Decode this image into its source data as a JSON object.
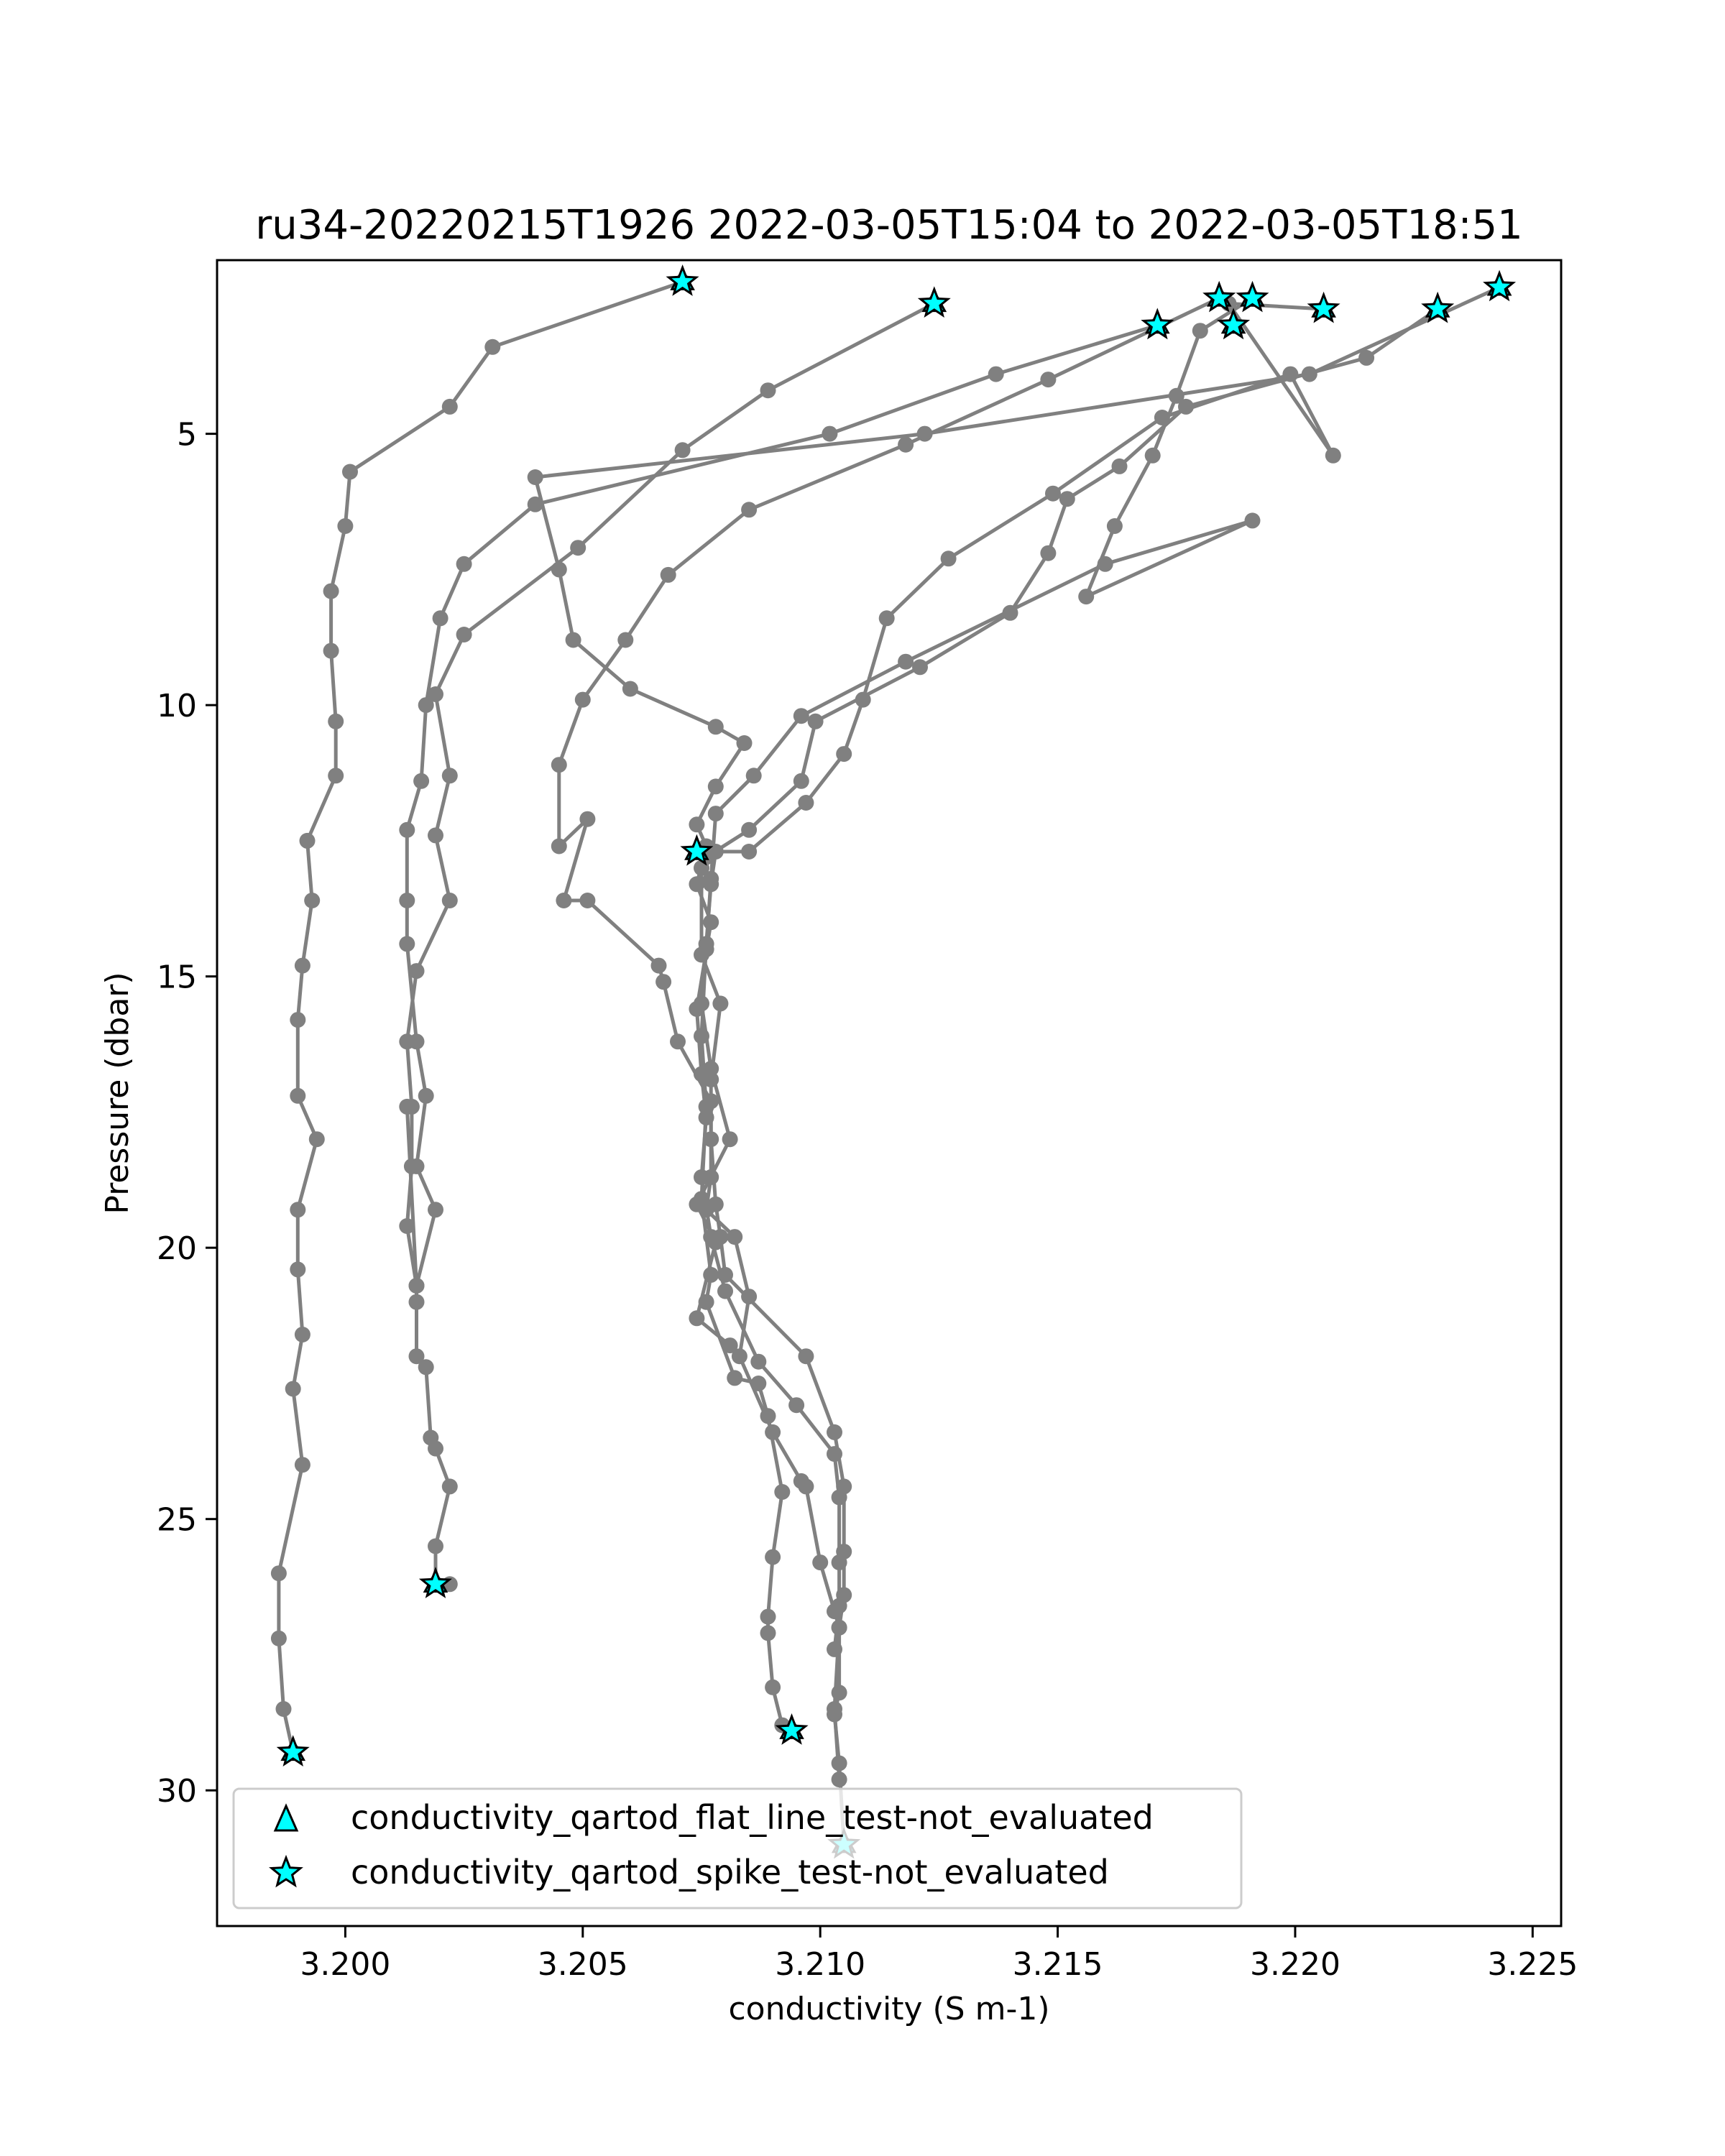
{
  "chart_data": {
    "type": "scatter",
    "title": "ru34-20220215T1926 2022-03-05T15:04 to 2022-03-05T18:51",
    "xlabel": "conductivity (S m-1)",
    "ylabel": "Pressure (dbar)",
    "xlim": [
      3.1973,
      3.2256
    ],
    "ylim": [
      32.5,
      1.8
    ],
    "y_inverted": true,
    "xticks": [
      3.2,
      3.205,
      3.21,
      3.215,
      3.22,
      3.225
    ],
    "xtick_labels": [
      "3.200",
      "3.205",
      "3.210",
      "3.215",
      "3.220",
      "3.225"
    ],
    "yticks": [
      5,
      10,
      15,
      20,
      25,
      30
    ],
    "ytick_labels": [
      "5",
      "10",
      "15",
      "20",
      "25",
      "30"
    ],
    "grid": false,
    "legend_position": "lower-left",
    "colors": {
      "line": "#808080",
      "marker": "#808080",
      "flag_fill": "#00FFFF",
      "flag_edge": "#000000"
    },
    "series": [
      {
        "x": [
          3.2071,
          3.2031,
          3.2022,
          3.2001,
          3.2,
          3.1997,
          3.1997,
          3.1998,
          3.1998,
          3.1992,
          3.1993,
          3.1991,
          3.199,
          3.199,
          3.1994,
          3.199,
          3.199,
          3.1991,
          3.1989,
          3.1991,
          3.1986,
          3.1986,
          3.1987,
          3.1989
        ],
        "y": [
          2.2,
          3.4,
          4.5,
          5.7,
          6.7,
          7.9,
          9.0,
          10.3,
          11.3,
          12.5,
          13.6,
          14.8,
          15.8,
          17.2,
          18.0,
          19.3,
          20.4,
          21.6,
          22.6,
          24.0,
          26.0,
          27.2,
          28.5,
          29.3
        ]
      },
      {
        "x": [
          3.2124,
          3.2089,
          3.2071,
          3.2049,
          3.2025,
          3.2019,
          3.2022,
          3.2019,
          3.2022,
          3.2015,
          3.2013,
          3.2014,
          3.2014,
          3.2013,
          3.2015,
          3.2015,
          3.2015,
          3.2017,
          3.2018,
          3.2019,
          3.2022,
          3.2019,
          3.2019,
          3.2019,
          3.2022,
          3.2019,
          3.2019
        ],
        "y": [
          2.6,
          4.2,
          5.3,
          7.1,
          8.7,
          9.8,
          11.3,
          12.4,
          13.6,
          14.9,
          16.2,
          17.4,
          18.5,
          19.6,
          20.7,
          21.0,
          22.0,
          22.2,
          23.5,
          23.7,
          24.4,
          25.5,
          26.2,
          26.2,
          26.2,
          26.2,
          26.2
        ]
      },
      {
        "x": [
          3.2171,
          3.2137,
          3.2102,
          3.204,
          3.2025,
          3.202,
          3.2017,
          3.2016,
          3.2013,
          3.2013,
          3.2013,
          3.2015,
          3.2017,
          3.2015,
          3.2019,
          3.2015,
          3.2013
        ],
        "y": [
          3.0,
          3.9,
          5.0,
          6.3,
          7.4,
          8.4,
          10.0,
          11.4,
          12.3,
          13.6,
          14.4,
          16.2,
          17.2,
          18.5,
          19.3,
          20.7,
          17.4
        ]
      },
      {
        "x": [
          3.2184,
          3.2148,
          3.2118,
          3.2085,
          3.2068,
          3.2059,
          3.205,
          3.2045,
          3.2045,
          3.2051,
          3.2046,
          3.2051,
          3.2066,
          3.2067,
          3.207,
          3.2077,
          3.2077,
          3.2076,
          3.2082,
          3.2085,
          3.2083,
          3.209,
          3.2096,
          3.2097,
          3.21,
          3.2103,
          3.2104,
          3.2104,
          3.2103,
          3.2104,
          3.2105
        ],
        "y": [
          2.5,
          4.0,
          5.2,
          6.4,
          7.6,
          8.8,
          9.9,
          11.1,
          12.6,
          12.1,
          13.6,
          13.6,
          14.8,
          15.1,
          16.2,
          17.3,
          18.7,
          19.3,
          19.8,
          20.9,
          22.0,
          23.4,
          24.3,
          24.4,
          25.8,
          26.7,
          27.0,
          28.2,
          28.6,
          29.5,
          31.0
        ]
      },
      {
        "x": [
          3.2191,
          3.218,
          3.2175,
          3.217,
          3.2162,
          3.2156,
          3.2191,
          3.216,
          3.2118,
          3.2096,
          3.2086,
          3.2078,
          3.2077,
          3.2076,
          3.2075,
          3.2077,
          3.2081,
          3.2074,
          3.2078,
          3.2074,
          3.2081
        ],
        "y": [
          2.5,
          3.1,
          4.3,
          5.4,
          6.7,
          8.0,
          6.6,
          7.4,
          9.2,
          10.2,
          11.3,
          12.0,
          13.2,
          14.5,
          15.5,
          16.7,
          18.0,
          19.2,
          19.9,
          21.3,
          21.8
        ]
      },
      {
        "x": [
          3.2206,
          3.2186,
          3.2208,
          3.2199,
          3.2172,
          3.2149,
          3.2127,
          3.2114,
          3.2109,
          3.2105,
          3.2097,
          3.2085,
          3.2078,
          3.2077,
          3.2076,
          3.2075,
          3.2076,
          3.2075,
          3.2077,
          3.2076,
          3.2082,
          3.2087,
          3.2089,
          3.2092,
          3.209,
          3.2089,
          3.2089,
          3.209,
          3.2092,
          3.2094
        ],
        "y": [
          2.7,
          2.6,
          5.4,
          3.9,
          4.7,
          6.1,
          7.3,
          8.4,
          9.9,
          10.9,
          11.8,
          12.7,
          12.7,
          13.3,
          14.4,
          16.1,
          17.4,
          19.1,
          20.5,
          21.0,
          22.4,
          22.5,
          23.1,
          24.5,
          25.7,
          26.8,
          27.1,
          28.1,
          28.8,
          28.9
        ]
      },
      {
        "x": [
          3.223,
          3.2215,
          3.2177,
          3.2163,
          3.2152,
          3.2148,
          3.214,
          3.2121,
          3.2099,
          3.2096,
          3.2085,
          3.2076,
          3.2075,
          3.2075,
          3.2079,
          3.2077,
          3.2077,
          3.2078,
          3.2079,
          3.208,
          3.2097,
          3.2103,
          3.2105,
          3.2105,
          3.2105,
          3.2104,
          3.2103,
          3.2104
        ],
        "y": [
          2.7,
          3.6,
          4.5,
          5.6,
          6.2,
          7.2,
          8.3,
          9.3,
          10.3,
          11.4,
          12.3,
          12.8,
          13.0,
          14.6,
          15.5,
          16.9,
          18.0,
          19.2,
          19.8,
          20.5,
          22.0,
          23.4,
          24.4,
          25.6,
          26.4,
          27.0,
          28.5,
          29.8
        ]
      },
      {
        "x": [
          3.2243,
          3.2203,
          3.2122,
          3.204,
          3.2045,
          3.2048,
          3.206,
          3.2078,
          3.2084,
          3.2078,
          3.2074,
          3.2076,
          3.2074,
          3.2077,
          3.2074,
          3.2075,
          3.2076,
          3.2075,
          3.2077,
          3.208,
          3.2087,
          3.2095,
          3.2103,
          3.2104,
          3.2104,
          3.2104,
          3.2103
        ],
        "y": [
          2.3,
          3.9,
          5.0,
          5.8,
          7.5,
          8.8,
          9.7,
          10.4,
          10.7,
          11.5,
          12.2,
          12.6,
          13.3,
          14.0,
          15.6,
          16.8,
          17.6,
          18.7,
          19.8,
          20.8,
          22.1,
          22.9,
          23.8,
          24.6,
          25.8,
          26.6,
          27.4
        ]
      }
    ],
    "flat_line_points": {
      "x": [
        3.2071,
        3.2124,
        3.2171,
        3.2184,
        3.2191,
        3.2187,
        3.2206,
        3.223,
        3.2243,
        3.2074,
        3.2019,
        3.1989,
        3.2094,
        3.2105
      ],
      "y": [
        2.2,
        2.6,
        3.0,
        2.5,
        2.5,
        3.0,
        2.7,
        2.7,
        2.3,
        12.7,
        26.2,
        29.3,
        28.9,
        31.0
      ]
    },
    "spike_points": {
      "x": [
        3.2071,
        3.2124,
        3.2171,
        3.2184,
        3.2191,
        3.2187,
        3.2206,
        3.223,
        3.2243,
        3.2074,
        3.2019,
        3.1989,
        3.2094,
        3.2105
      ],
      "y": [
        2.2,
        2.6,
        3.0,
        2.5,
        2.5,
        3.0,
        2.7,
        2.7,
        2.3,
        12.7,
        26.2,
        29.3,
        28.9,
        31.0
      ]
    },
    "legend": [
      {
        "marker": "triangle",
        "label": "conductivity_qartod_flat_line_test-not_evaluated"
      },
      {
        "marker": "star",
        "label": "conductivity_qartod_spike_test-not_evaluated"
      }
    ]
  }
}
